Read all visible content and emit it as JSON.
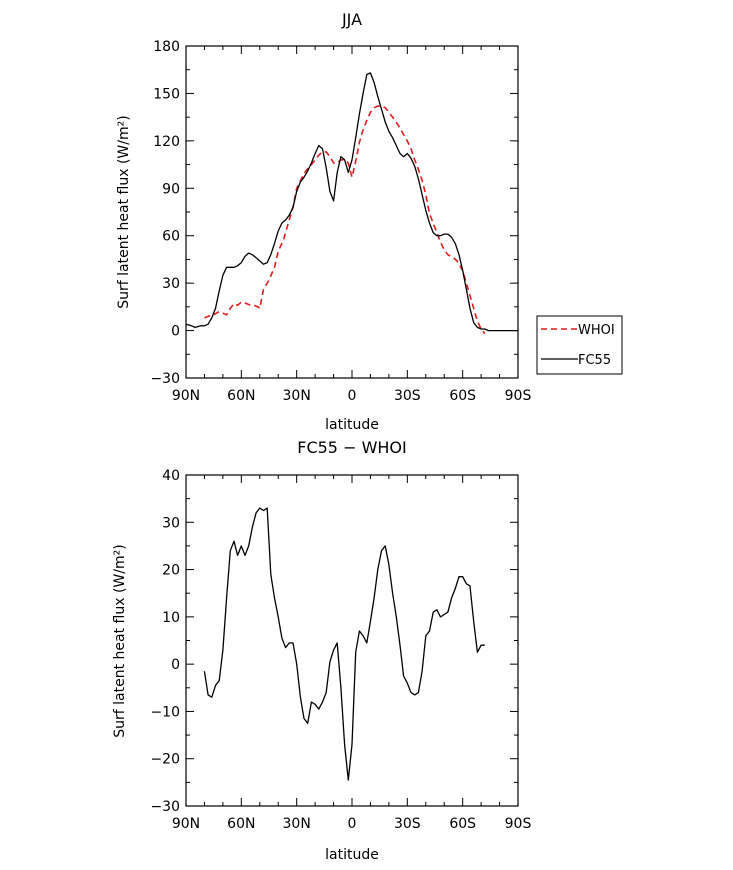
{
  "chart_data": [
    {
      "type": "line",
      "title": "JJA",
      "xlabel": "latitude",
      "ylabel": "Surf latent heat flux (W/m²)",
      "xlim": [
        -90,
        90
      ],
      "ylim": [
        -30,
        180
      ],
      "x_ticks": [
        -90,
        -60,
        -30,
        0,
        30,
        60,
        90
      ],
      "x_tick_labels": [
        "90N",
        "60N",
        "30N",
        "0",
        "30S",
        "60S",
        "90S"
      ],
      "y_ticks": [
        -30,
        0,
        30,
        60,
        90,
        120,
        150,
        180
      ],
      "y_tick_labels": [
        "−30",
        "0",
        "30",
        "60",
        "90",
        "120",
        "150",
        "180"
      ],
      "grid": false,
      "legend_position": "right",
      "series": [
        {
          "name": "WHOI",
          "color": "#e41a1c",
          "style": "dashed",
          "x": [
            -80,
            -78,
            -75,
            -72,
            -70,
            -68,
            -66,
            -64,
            -62,
            -60,
            -57,
            -55,
            -53,
            -51,
            -50,
            -48,
            -45,
            -42,
            -40,
            -37,
            -35,
            -32,
            -30,
            -27,
            -25,
            -22,
            -20,
            -18,
            -16,
            -14,
            -12,
            -10,
            -8,
            -6,
            -4,
            -2,
            0,
            2,
            4,
            6,
            8,
            10,
            12,
            14,
            16,
            18,
            20,
            22,
            25,
            28,
            30,
            32,
            34,
            36,
            38,
            40,
            42,
            45,
            48,
            50,
            52,
            55,
            57,
            60,
            62,
            64,
            66,
            68,
            70,
            72
          ],
          "y": [
            8,
            9,
            10,
            12,
            11,
            10,
            14,
            17,
            16,
            18,
            17,
            16,
            16,
            15,
            14,
            26,
            32,
            40,
            50,
            58,
            66,
            78,
            90,
            97,
            101,
            105,
            108,
            111,
            113,
            113,
            110,
            106,
            106,
            108,
            108,
            106,
            97,
            107,
            119,
            127,
            133,
            138,
            141,
            142,
            142,
            141,
            138,
            135,
            130,
            124,
            120,
            115,
            108,
            102,
            95,
            86,
            74,
            65,
            56,
            51,
            48,
            46,
            44,
            38,
            30,
            22,
            14,
            6,
            1,
            -2
          ]
        },
        {
          "name": "FC55",
          "color": "#000000",
          "style": "solid",
          "x": [
            -90,
            -87,
            -85,
            -82,
            -80,
            -78,
            -76,
            -74,
            -72,
            -70,
            -68,
            -66,
            -64,
            -62,
            -60,
            -58,
            -56,
            -54,
            -52,
            -50,
            -48,
            -46,
            -44,
            -42,
            -40,
            -38,
            -36,
            -34,
            -32,
            -30,
            -28,
            -26,
            -24,
            -22,
            -20,
            -18,
            -16,
            -14,
            -12,
            -10,
            -8,
            -6,
            -4,
            -2,
            0,
            2,
            4,
            6,
            8,
            10,
            12,
            14,
            16,
            18,
            20,
            22,
            24,
            26,
            28,
            30,
            32,
            34,
            36,
            38,
            40,
            42,
            44,
            46,
            48,
            50,
            52,
            54,
            56,
            58,
            60,
            62,
            64,
            66,
            68,
            70,
            72,
            74,
            76,
            78,
            80,
            82,
            84,
            86,
            88,
            90
          ],
          "y": [
            4,
            3,
            2,
            3,
            3,
            4,
            8,
            14,
            25,
            35,
            40,
            40,
            40,
            41,
            43,
            47,
            49,
            48,
            46,
            44,
            42,
            43,
            48,
            55,
            63,
            68,
            70,
            73,
            78,
            88,
            94,
            97,
            101,
            106,
            112,
            117,
            115,
            103,
            88,
            82,
            100,
            110,
            108,
            100,
            108,
            122,
            137,
            150,
            162,
            163,
            157,
            148,
            140,
            132,
            126,
            122,
            117,
            112,
            110,
            112,
            109,
            104,
            96,
            86,
            76,
            68,
            62,
            60,
            60,
            61,
            61,
            59,
            55,
            48,
            38,
            26,
            14,
            5,
            2,
            1,
            1,
            0,
            0,
            0,
            0,
            0,
            0,
            0,
            0,
            0
          ]
        }
      ]
    },
    {
      "type": "line",
      "title": "FC55 − WHOI",
      "xlabel": "latitude",
      "ylabel": "Surf latent heat flux (W/m²)",
      "xlim": [
        -90,
        90
      ],
      "ylim": [
        -30,
        40
      ],
      "x_ticks": [
        -90,
        -60,
        -30,
        0,
        30,
        60,
        90
      ],
      "x_tick_labels": [
        "90N",
        "60N",
        "30N",
        "0",
        "30S",
        "60S",
        "90S"
      ],
      "y_ticks": [
        -30,
        -20,
        -10,
        0,
        10,
        20,
        30,
        40
      ],
      "y_tick_labels": [
        "−30",
        "−20",
        "−10",
        "0",
        "10",
        "20",
        "30",
        "40"
      ],
      "grid": false,
      "series": [
        {
          "color": "#000000",
          "style": "solid",
          "x": [
            -80,
            -78,
            -76,
            -74,
            -72,
            -70,
            -68,
            -66,
            -64,
            -62,
            -60,
            -58,
            -56,
            -54,
            -52,
            -50,
            -48,
            -46,
            -44,
            -42,
            -40,
            -38,
            -36,
            -34,
            -32,
            -30,
            -28,
            -26,
            -24,
            -22,
            -20,
            -18,
            -16,
            -14,
            -12,
            -10,
            -8,
            -6,
            -4,
            -2,
            0,
            2,
            4,
            6,
            8,
            10,
            12,
            14,
            16,
            18,
            20,
            22,
            24,
            26,
            28,
            30,
            32,
            34,
            36,
            38,
            40,
            42,
            44,
            46,
            48,
            50,
            52,
            54,
            56,
            58,
            60,
            62,
            64,
            66,
            68,
            70,
            72
          ],
          "y": [
            -1.5,
            -6.5,
            -7,
            -4.5,
            -3.5,
            3,
            14,
            24,
            26,
            23,
            25,
            23,
            25,
            29,
            32,
            33,
            32.5,
            33,
            19,
            14,
            10,
            5.5,
            3.5,
            4.5,
            4.5,
            0,
            -7,
            -11.5,
            -12.5,
            -8,
            -8.5,
            -9.5,
            -8,
            -6,
            0.5,
            3,
            4.5,
            -5,
            -17,
            -24.5,
            -17,
            2.5,
            7,
            6,
            4.5,
            9,
            14,
            20,
            24,
            25,
            21,
            15,
            10,
            4,
            -2.5,
            -4,
            -6,
            -6.5,
            -6,
            -1.5,
            6,
            7,
            11,
            11.5,
            10,
            10.5,
            11,
            14,
            16,
            18.5,
            18.5,
            17,
            16.5,
            9,
            2.5,
            4,
            4
          ]
        }
      ]
    }
  ]
}
